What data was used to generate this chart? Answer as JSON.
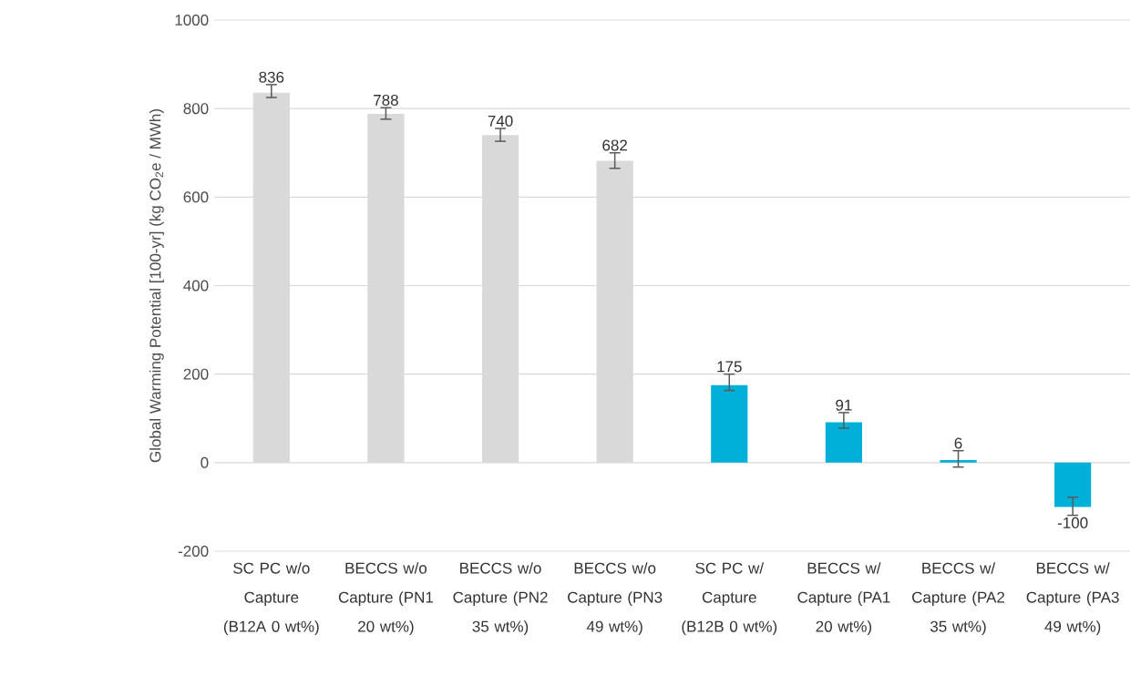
{
  "chart_data": {
    "type": "bar",
    "ylabel": "Global Warming Potential [100-yr] (kg CO$_{2}$e / MWh)",
    "categories": [
      "SC PC w/o Capture (B12A 0 wt%)",
      "BECCS w/o Capture (PN1 20 wt%)",
      "BECCS w/o Capture (PN2 35 wt%)",
      "BECCS w/o Capture (PN3 49 wt%)",
      "SC PC w/ Capture (B12B 0 wt%)",
      "BECCS w/ Capture (PA1 20 wt%)",
      "BECCS w/ Capture (PA2 35 wt%)",
      "BECCS w/ Capture (PA3 49 wt%)"
    ],
    "values": [
      836,
      788,
      740,
      682,
      175,
      91,
      6,
      -100
    ],
    "colors": [
      "#d9d9d9",
      "#d9d9d9",
      "#d9d9d9",
      "#d9d9d9",
      "#00b0d8",
      "#00b0d8",
      "#00b0d8",
      "#00b0d8"
    ],
    "errors": [
      [
        825,
        854
      ],
      [
        776,
        802
      ],
      [
        726,
        755
      ],
      [
        665,
        700
      ],
      [
        163,
        200
      ],
      [
        78,
        113
      ],
      [
        -10,
        27
      ],
      [
        -119,
        -78
      ]
    ],
    "ylim": [
      -200,
      1000
    ],
    "yticks": [
      -200,
      0,
      200,
      400,
      600,
      800,
      1000
    ],
    "grid": "y",
    "data_labels": true
  }
}
